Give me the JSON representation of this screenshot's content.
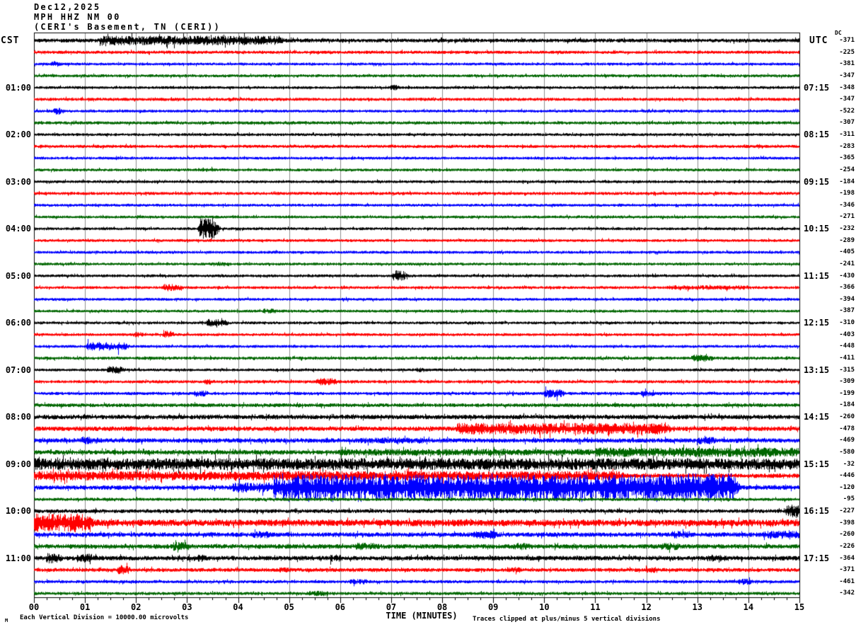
{
  "header": {
    "date": "Dec12,2025",
    "station": "MPH HHZ NM 00",
    "location": "(CERI's Basement, TN (CERI))"
  },
  "axes": {
    "left_label": "CST",
    "right_label": "UTC",
    "dc_label": "DC",
    "x_title": "TIME (MINUTES)",
    "x_ticks": [
      "00",
      "01",
      "02",
      "03",
      "04",
      "05",
      "06",
      "07",
      "08",
      "09",
      "10",
      "11",
      "12",
      "13",
      "14",
      "15"
    ],
    "left_times": [
      "01:00",
      "02:00",
      "03:00",
      "04:00",
      "05:00",
      "06:00",
      "07:00",
      "08:00",
      "09:00",
      "10:00",
      "11:00"
    ],
    "right_times": [
      "07:15",
      "08:15",
      "09:15",
      "10:15",
      "11:15",
      "12:15",
      "13:15",
      "14:15",
      "15:15",
      "16:15",
      "17:15"
    ]
  },
  "footer": {
    "left_note": "Each Vertical Division = 10000.00 microvolts",
    "right_note": "Traces clipped at plus/minus 5 vertical divisions",
    "mark": "M"
  },
  "colors": {
    "black": "#000000",
    "red": "#ff0000",
    "blue": "#0000ff",
    "green": "#006600",
    "grid": "#8c8c8c",
    "border": "#000000"
  },
  "chart_data": {
    "type": "line",
    "subtype": "helicorder",
    "x_unit": "minutes",
    "x_range": [
      0,
      15
    ],
    "minutes_per_row": 15,
    "rows_per_hour": 4,
    "clip_divisions": 5,
    "rows": [
      {
        "t": "00:00",
        "c": "black",
        "dc": -371,
        "amp": 2.5,
        "ev": [
          [
            1.3,
            4.8,
            6.5
          ]
        ]
      },
      {
        "t": "00:15",
        "c": "red",
        "dc": -225,
        "amp": 2.0,
        "ev": []
      },
      {
        "t": "00:30",
        "c": "blue",
        "dc": -381,
        "amp": 1.8,
        "ev": [
          [
            0.35,
            0.45,
            4
          ]
        ]
      },
      {
        "t": "00:45",
        "c": "green",
        "dc": -347,
        "amp": 1.9,
        "ev": []
      },
      {
        "t": "01:00",
        "c": "black",
        "dc": -348,
        "amp": 1.8,
        "ev": [
          [
            7.0,
            7.1,
            4
          ]
        ]
      },
      {
        "t": "01:15",
        "c": "red",
        "dc": -347,
        "amp": 2.0,
        "ev": []
      },
      {
        "t": "01:30",
        "c": "blue",
        "dc": -522,
        "amp": 1.8,
        "ev": [
          [
            0.4,
            0.5,
            5
          ]
        ]
      },
      {
        "t": "01:45",
        "c": "green",
        "dc": -307,
        "amp": 2.0,
        "ev": []
      },
      {
        "t": "02:00",
        "c": "black",
        "dc": -311,
        "amp": 1.8,
        "ev": []
      },
      {
        "t": "02:15",
        "c": "red",
        "dc": -283,
        "amp": 2.0,
        "ev": []
      },
      {
        "t": "02:30",
        "c": "blue",
        "dc": -365,
        "amp": 1.8,
        "ev": []
      },
      {
        "t": "02:45",
        "c": "green",
        "dc": -254,
        "amp": 1.8,
        "ev": [
          [
            3.2,
            3.5,
            2.5
          ]
        ]
      },
      {
        "t": "03:00",
        "c": "black",
        "dc": -184,
        "amp": 1.8,
        "ev": []
      },
      {
        "t": "03:15",
        "c": "red",
        "dc": -198,
        "amp": 2.0,
        "ev": []
      },
      {
        "t": "03:30",
        "c": "blue",
        "dc": -346,
        "amp": 1.8,
        "ev": []
      },
      {
        "t": "03:45",
        "c": "green",
        "dc": -271,
        "amp": 1.8,
        "ev": []
      },
      {
        "t": "04:00",
        "c": "black",
        "dc": -232,
        "amp": 1.8,
        "ev": [
          [
            3.25,
            3.5,
            15
          ]
        ]
      },
      {
        "t": "04:15",
        "c": "red",
        "dc": -289,
        "amp": 1.8,
        "ev": []
      },
      {
        "t": "04:30",
        "c": "blue",
        "dc": -405,
        "amp": 1.8,
        "ev": []
      },
      {
        "t": "04:45",
        "c": "green",
        "dc": -241,
        "amp": 1.8,
        "ev": [
          [
            3.5,
            3.8,
            3
          ]
        ]
      },
      {
        "t": "05:00",
        "c": "black",
        "dc": -430,
        "amp": 1.8,
        "ev": [
          [
            7.05,
            7.2,
            8
          ]
        ]
      },
      {
        "t": "05:15",
        "c": "red",
        "dc": -366,
        "amp": 1.8,
        "ev": [
          [
            2.55,
            2.8,
            5
          ],
          [
            12.4,
            14.0,
            3
          ]
        ]
      },
      {
        "t": "05:30",
        "c": "blue",
        "dc": -394,
        "amp": 1.8,
        "ev": []
      },
      {
        "t": "05:45",
        "c": "green",
        "dc": -387,
        "amp": 1.8,
        "ev": [
          [
            4.5,
            4.7,
            3.5
          ]
        ]
      },
      {
        "t": "06:00",
        "c": "black",
        "dc": -310,
        "amp": 1.8,
        "ev": [
          [
            3.4,
            3.7,
            5.5
          ]
        ]
      },
      {
        "t": "06:15",
        "c": "red",
        "dc": -403,
        "amp": 1.8,
        "ev": [
          [
            1.95,
            2.05,
            4
          ],
          [
            2.55,
            2.65,
            6
          ]
        ]
      },
      {
        "t": "06:30",
        "c": "blue",
        "dc": -448,
        "amp": 1.8,
        "ev": [
          [
            1.05,
            1.5,
            6
          ],
          [
            1.65,
            1.75,
            7
          ]
        ]
      },
      {
        "t": "06:45",
        "c": "green",
        "dc": -411,
        "amp": 2.0,
        "ev": [
          [
            12.9,
            13.2,
            5
          ]
        ]
      },
      {
        "t": "07:00",
        "c": "black",
        "dc": -315,
        "amp": 1.8,
        "ev": [
          [
            1.45,
            1.7,
            5
          ],
          [
            7.5,
            7.7,
            3
          ]
        ]
      },
      {
        "t": "07:15",
        "c": "red",
        "dc": -309,
        "amp": 2.0,
        "ev": [
          [
            3.35,
            3.45,
            4
          ],
          [
            5.55,
            5.85,
            5
          ]
        ]
      },
      {
        "t": "07:30",
        "c": "blue",
        "dc": -199,
        "amp": 2.0,
        "ev": [
          [
            3.15,
            3.35,
            4
          ],
          [
            10.0,
            10.3,
            6
          ],
          [
            11.9,
            12.1,
            4
          ]
        ]
      },
      {
        "t": "07:45",
        "c": "green",
        "dc": -184,
        "amp": 2.4,
        "ev": []
      },
      {
        "t": "08:00",
        "c": "black",
        "dc": -260,
        "amp": 3.0,
        "ev": []
      },
      {
        "t": "08:15",
        "c": "red",
        "dc": -478,
        "amp": 3.0,
        "ev": [
          [
            8.3,
            12.4,
            8
          ]
        ]
      },
      {
        "t": "08:30",
        "c": "blue",
        "dc": -469,
        "amp": 3.0,
        "ev": [
          [
            0.9,
            1.2,
            5
          ],
          [
            6.4,
            7.6,
            4
          ],
          [
            13.0,
            13.3,
            5
          ]
        ]
      },
      {
        "t": "08:45",
        "c": "green",
        "dc": -580,
        "amp": 3.0,
        "ev": [
          [
            6.0,
            10.9,
            4.5
          ],
          [
            11.0,
            15,
            6.5
          ]
        ]
      },
      {
        "t": "09:00",
        "c": "black",
        "dc": -32,
        "amp": 8.0,
        "ev": []
      },
      {
        "t": "09:15",
        "c": "red",
        "dc": -446,
        "amp": 3.0,
        "ev": [
          [
            0,
            11.5,
            6.5
          ]
        ]
      },
      {
        "t": "09:30",
        "c": "blue",
        "dc": -120,
        "amp": 3.0,
        "ev": [
          [
            3.9,
            4.7,
            7
          ],
          [
            4.7,
            13.7,
            18
          ]
        ]
      },
      {
        "t": "09:45",
        "c": "green",
        "dc": -95,
        "amp": 2.0,
        "ev": []
      },
      {
        "t": "10:00",
        "c": "black",
        "dc": -227,
        "amp": 2.5,
        "ev": [
          [
            14.75,
            15,
            9
          ]
        ]
      },
      {
        "t": "10:15",
        "c": "red",
        "dc": -398,
        "amp": 4.5,
        "ev": [
          [
            0,
            1.05,
            13
          ]
        ]
      },
      {
        "t": "10:30",
        "c": "blue",
        "dc": -260,
        "amp": 3.0,
        "ev": [
          [
            4.3,
            4.6,
            5
          ],
          [
            8.6,
            9.0,
            6
          ],
          [
            12.5,
            12.8,
            5
          ],
          [
            14.3,
            15,
            5
          ]
        ]
      },
      {
        "t": "10:45",
        "c": "green",
        "dc": -226,
        "amp": 3.0,
        "ev": [
          [
            2.7,
            3.0,
            6
          ],
          [
            6.3,
            6.7,
            5
          ],
          [
            9.4,
            9.7,
            5
          ],
          [
            12.3,
            12.6,
            5
          ]
        ]
      },
      {
        "t": "11:00",
        "c": "black",
        "dc": -364,
        "amp": 3.0,
        "ev": [
          [
            0.25,
            0.45,
            7
          ],
          [
            0.85,
            1.15,
            6
          ],
          [
            3.1,
            3.3,
            5
          ],
          [
            5.8,
            6.0,
            5
          ],
          [
            13.2,
            13.5,
            5
          ]
        ]
      },
      {
        "t": "11:15",
        "c": "red",
        "dc": -371,
        "amp": 2.5,
        "ev": [
          [
            1.65,
            1.8,
            7
          ],
          [
            4.8,
            5.0,
            3.5
          ],
          [
            9.3,
            9.5,
            4
          ],
          [
            12.0,
            12.2,
            4
          ]
        ]
      },
      {
        "t": "11:30",
        "c": "blue",
        "dc": -461,
        "amp": 2.0,
        "ev": [
          [
            6.2,
            6.5,
            3.5
          ],
          [
            13.8,
            14.0,
            4
          ]
        ]
      },
      {
        "t": "11:45",
        "c": "green",
        "dc": -342,
        "amp": 2.0,
        "ev": [
          [
            5.4,
            5.7,
            3.5
          ]
        ]
      }
    ]
  }
}
